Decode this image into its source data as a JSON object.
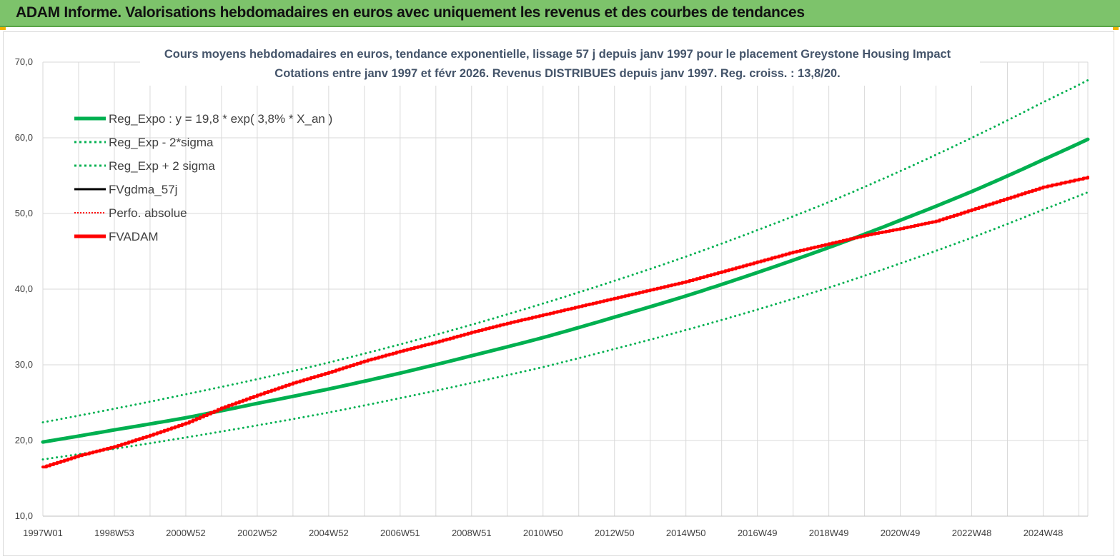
{
  "header": {
    "title": "ADAM Informe. Valorisations hebdomadaires en euros avec uniquement les revenus et des courbes de tendances"
  },
  "colors": {
    "header_bg": "#7dc36b",
    "reg_green": "#00b050",
    "fvadam_red": "#ff0000",
    "fvgdma_black": "#000000"
  },
  "chart_data": {
    "type": "line",
    "title": [
      "Cours moyens hebdomadaires en euros, tendance exponentielle, lissage 57 j depuis janv 1997  pour le placement Greystone Housing Impact",
      "Cotations entre janv 1997 et févr 2026. Revenus DISTRIBUES depuis janv 1997. Reg. croiss. : 13,8/20."
    ],
    "xlabel": "",
    "ylabel": "",
    "ylim": [
      10,
      70
    ],
    "xlim": [
      1997.0,
      2026.25
    ],
    "grid": true,
    "legend_position": "top-left",
    "y_ticks": [
      "10,0",
      "20,0",
      "30,0",
      "40,0",
      "50,0",
      "60,0",
      "70,0"
    ],
    "x_tick_labels": [
      "1997W01",
      "1998W53",
      "2000W52",
      "2002W52",
      "2004W52",
      "2006W51",
      "2008W51",
      "2010W50",
      "2012W50",
      "2014W50",
      "2016W49",
      "2018W49",
      "2020W49",
      "2022W48",
      "2024W48"
    ],
    "x_tick_years": [
      1997.0,
      1999.0,
      2001.0,
      2003.0,
      2005.0,
      2007.0,
      2009.0,
      2011.0,
      2013.0,
      2015.0,
      2017.0,
      2019.0,
      2021.0,
      2023.0,
      2025.0
    ],
    "series": [
      {
        "name": "Reg_Expo : y = 19,8 * exp( 3,8% *  X_an )",
        "style": "thick-solid",
        "color": "#00b050",
        "x": [
          1997,
          1999,
          2001,
          2003,
          2005,
          2007,
          2009,
          2011,
          2013,
          2015,
          2017,
          2019,
          2021,
          2023,
          2025,
          2026.25
        ],
        "values": [
          19.8,
          21.4,
          23.0,
          24.9,
          26.8,
          28.9,
          31.2,
          33.6,
          36.3,
          39.1,
          42.2,
          45.5,
          49.1,
          52.9,
          57.1,
          59.8
        ]
      },
      {
        "name": "Reg_Exp - 2*sigma",
        "style": "dotted",
        "color": "#00b050",
        "x": [
          1997,
          1999,
          2001,
          2003,
          2005,
          2007,
          2009,
          2011,
          2013,
          2015,
          2017,
          2019,
          2021,
          2023,
          2025,
          2026.25
        ],
        "values": [
          17.5,
          18.9,
          20.4,
          22.0,
          23.7,
          25.6,
          27.6,
          29.7,
          32.1,
          34.6,
          37.3,
          40.2,
          43.4,
          46.8,
          50.5,
          52.8
        ]
      },
      {
        "name": "Reg_Exp + 2 sigma",
        "style": "dotted",
        "color": "#00b050",
        "x": [
          1997,
          1999,
          2001,
          2003,
          2005,
          2007,
          2009,
          2011,
          2013,
          2015,
          2017,
          2019,
          2021,
          2023,
          2025,
          2026.25
        ],
        "values": [
          22.4,
          24.2,
          26.1,
          28.1,
          30.3,
          32.7,
          35.3,
          38.1,
          41.1,
          44.3,
          47.8,
          51.5,
          55.6,
          60.0,
          64.7,
          67.6
        ]
      },
      {
        "name": "FVgdma_57j",
        "style": "solid",
        "color": "#000000",
        "x": [],
        "values": []
      },
      {
        "name": "Perfo. absolue",
        "style": "dotted",
        "color": "#ff0000",
        "x": [],
        "values": []
      },
      {
        "name": "FVADAM",
        "style": "thick-solid",
        "color": "#ff0000",
        "x": [
          1997,
          1998,
          1999,
          2000,
          2001,
          2002,
          2003,
          2004,
          2005,
          2006,
          2007,
          2008,
          2009,
          2010,
          2011,
          2012,
          2013,
          2014,
          2015,
          2016,
          2017,
          2018,
          2019,
          2020,
          2021,
          2022,
          2023,
          2024,
          2025,
          2026.25
        ],
        "values": [
          16.5,
          18.0,
          19.2,
          20.7,
          22.3,
          24.3,
          26.0,
          27.6,
          29.0,
          30.5,
          31.8,
          33.0,
          34.3,
          35.5,
          36.6,
          37.7,
          38.8,
          39.9,
          41.0,
          42.3,
          43.6,
          44.9,
          46.0,
          47.1,
          48.0,
          49.0,
          50.5,
          52.0,
          53.5,
          54.8
        ]
      }
    ]
  }
}
